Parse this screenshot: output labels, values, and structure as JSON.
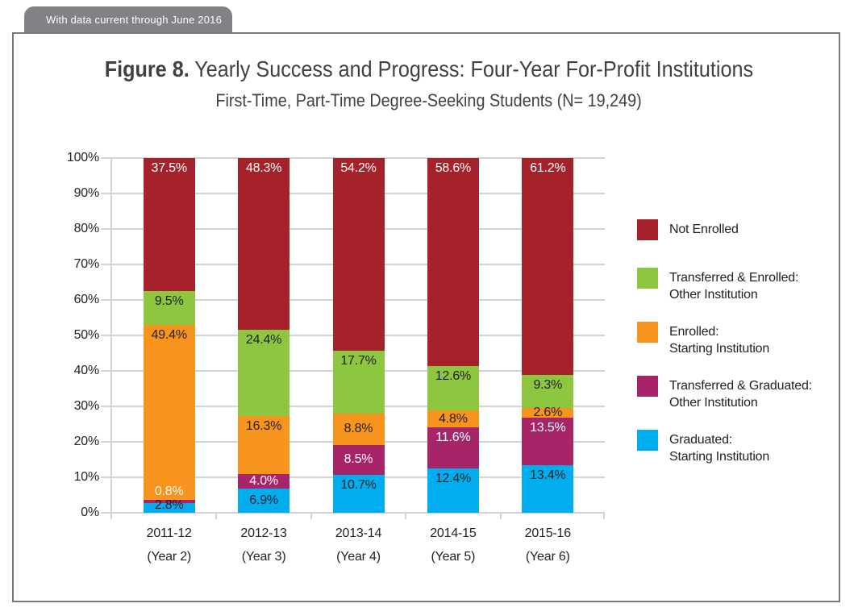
{
  "banner": {
    "text": "With data current through June 2016"
  },
  "title": {
    "figure_label": "Figure 8.",
    "line1_rest": " Yearly Success and Progress: Four-Year For-Profit Institutions",
    "line2": "First-Time, Part-Time Degree-Seeking Students (N= 19,249)"
  },
  "colors": {
    "not_enrolled": "#A6222B",
    "transferred_enrolled": "#8DC63F",
    "enrolled_starting": "#F7941E",
    "transferred_graduated": "#A72468",
    "graduated_starting": "#00AEEF",
    "gridline": "#D1D3D4",
    "axis_text": "#231F20",
    "title_text": "#414042",
    "banner_bg": "#808285",
    "border": "#797A7D"
  },
  "chart_data": {
    "type": "bar",
    "stacked": true,
    "title": "Figure 8. Yearly Success and Progress: Four-Year For-Profit Institutions",
    "subtitle": "First-Time, Part-Time Degree-Seeking Students (N= 19,249)",
    "categories": [
      "2011-12",
      "2012-13",
      "2013-14",
      "2014-15",
      "2015-16"
    ],
    "category_sublabels": [
      "(Year 2)",
      "(Year 3)",
      "(Year 4)",
      "(Year 5)",
      "(Year 6)"
    ],
    "ylim": [
      0,
      100
    ],
    "ytick_step": 10,
    "ytick_suffix": "%",
    "grid": true,
    "legend_position": "right",
    "series": [
      {
        "name": "Graduated: Starting Institution",
        "color": "#00AEEF",
        "label_color": "#231F20",
        "values": [
          2.8,
          6.9,
          10.7,
          12.4,
          13.4
        ]
      },
      {
        "name": "Transferred & Graduated: Other Institution",
        "color": "#A72468",
        "label_color": "#FFFFFF",
        "values": [
          0.8,
          4.0,
          8.5,
          11.6,
          13.5
        ]
      },
      {
        "name": "Enrolled: Starting Institution",
        "color": "#F7941E",
        "label_color": "#231F20",
        "values": [
          49.4,
          16.3,
          8.8,
          4.8,
          2.6
        ]
      },
      {
        "name": "Transferred & Enrolled: Other Institution",
        "color": "#8DC63F",
        "label_color": "#231F20",
        "values": [
          9.5,
          24.4,
          17.7,
          12.6,
          9.3
        ]
      },
      {
        "name": "Not Enrolled",
        "color": "#A6222B",
        "label_color": "#FFFFFF",
        "values": [
          37.5,
          48.3,
          54.2,
          58.6,
          61.2
        ]
      }
    ],
    "legend": [
      {
        "lines": [
          "Not Enrolled"
        ],
        "color": "#A6222B"
      },
      {
        "lines": [
          "Transferred & Enrolled:",
          "Other Institution"
        ],
        "color": "#8DC63F"
      },
      {
        "lines": [
          "Enrolled:",
          "Starting Institution"
        ],
        "color": "#F7941E"
      },
      {
        "lines": [
          "Transferred & Graduated:",
          "Other Institution"
        ],
        "color": "#A72468"
      },
      {
        "lines": [
          "Graduated:",
          "Starting Institution"
        ],
        "color": "#00AEEF"
      }
    ]
  }
}
